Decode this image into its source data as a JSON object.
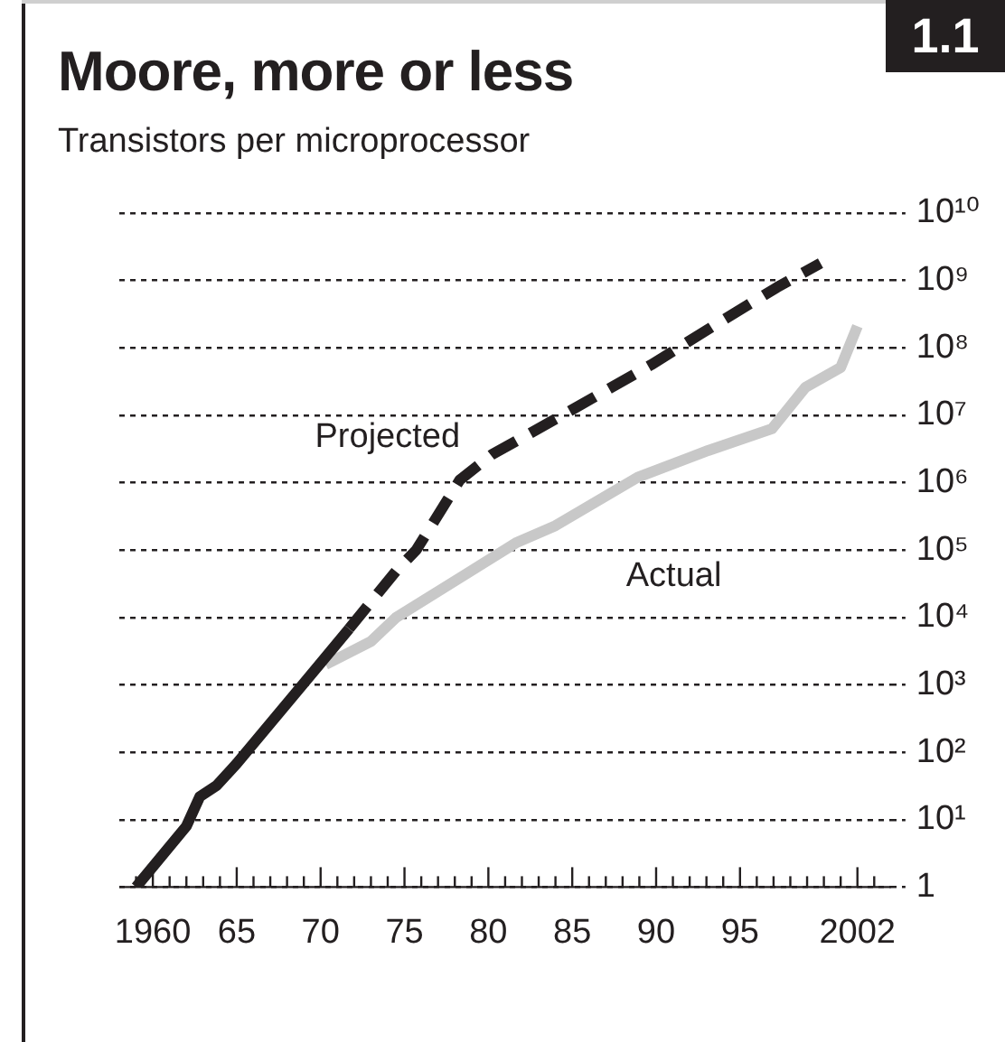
{
  "chart_data": {
    "type": "line",
    "title": "Moore, more or less",
    "subtitle": "Transistors per microprocessor",
    "annotations": [
      "1.1"
    ],
    "log": "y",
    "grid": "y",
    "legend": false,
    "xlim": [
      1958,
      2004
    ],
    "xticks": [
      {
        "value": 1959,
        "label": null
      },
      {
        "value": 1960,
        "label": "1960"
      },
      {
        "value": 1961,
        "label": null
      },
      {
        "value": 1962,
        "label": null
      },
      {
        "value": 1963,
        "label": null
      },
      {
        "value": 1964,
        "label": null
      },
      {
        "value": 1965,
        "label": "65"
      },
      {
        "value": 1966,
        "label": null
      },
      {
        "value": 1967,
        "label": null
      },
      {
        "value": 1968,
        "label": null
      },
      {
        "value": 1969,
        "label": null
      },
      {
        "value": 1970,
        "label": "70"
      },
      {
        "value": 1971,
        "label": null
      },
      {
        "value": 1972,
        "label": null
      },
      {
        "value": 1973,
        "label": null
      },
      {
        "value": 1974,
        "label": null
      },
      {
        "value": 1975,
        "label": "75"
      },
      {
        "value": 1976,
        "label": null
      },
      {
        "value": 1977,
        "label": null
      },
      {
        "value": 1978,
        "label": null
      },
      {
        "value": 1979,
        "label": null
      },
      {
        "value": 1980,
        "label": "80"
      },
      {
        "value": 1981,
        "label": null
      },
      {
        "value": 1982,
        "label": null
      },
      {
        "value": 1983,
        "label": null
      },
      {
        "value": 1984,
        "label": null
      },
      {
        "value": 1985,
        "label": "85"
      },
      {
        "value": 1986,
        "label": null
      },
      {
        "value": 1987,
        "label": null
      },
      {
        "value": 1988,
        "label": null
      },
      {
        "value": 1989,
        "label": null
      },
      {
        "value": 1990,
        "label": "90"
      },
      {
        "value": 1991,
        "label": null
      },
      {
        "value": 1992,
        "label": null
      },
      {
        "value": 1993,
        "label": null
      },
      {
        "value": 1994,
        "label": null
      },
      {
        "value": 1995,
        "label": "95"
      },
      {
        "value": 1996,
        "label": null
      },
      {
        "value": 1997,
        "label": null
      },
      {
        "value": 1998,
        "label": null
      },
      {
        "value": 1999,
        "label": null
      },
      {
        "value": 2000,
        "label": null
      },
      {
        "value": 2001,
        "label": null
      },
      {
        "value": 2002,
        "label": "2002"
      },
      {
        "value": 2003,
        "label": null
      }
    ],
    "ylim": [
      1,
      10000000000
    ],
    "yticks": [
      1,
      {
        "value": 10,
        "label": "10¹"
      },
      {
        "value": 100,
        "label": "10²"
      },
      {
        "value": 1000,
        "label": "10³"
      },
      {
        "value": 10000,
        "label": "10⁴"
      },
      {
        "value": 100000,
        "label": "10⁵"
      },
      {
        "value": 1000000,
        "label": "10⁶"
      },
      {
        "value": 10000000,
        "label": "10⁷"
      },
      {
        "value": 100000000,
        "label": "10⁸"
      },
      {
        "value": 1000000000,
        "label": "10⁹"
      },
      {
        "value": 10000000000,
        "label": "10¹⁰"
      }
    ],
    "series": [
      {
        "color": "#231f20",
        "line_style": "solid",
        "x": [
          1959,
          1962,
          1962.8,
          1963.8,
          1965,
          1970,
          1971.7
        ],
        "values": [
          1,
          8,
          22,
          32,
          68,
          2100,
          6800
        ]
      },
      {
        "name": "Projected",
        "color": "#231f20",
        "line_style": "dashed",
        "x": [
          1971.7,
          1972.5,
          1974.5,
          1975.7,
          1978.3,
          1980.2,
          1984.4,
          1989.7,
          1993.4,
          1997.2,
          1999.8
        ],
        "values": [
          6800,
          12000,
          49000,
          100000,
          1100000,
          2600000,
          10000000,
          56000000,
          210000000,
          790000000,
          1800000000
        ]
      },
      {
        "name": "Actual",
        "color": "#c8c8c8",
        "line_style": "solid",
        "x": [
          1970.3,
          1973,
          1974.5,
          1981.7,
          1984,
          1988.9,
          1993.1,
          1996.9,
          1998.9,
          2001,
          2002
        ],
        "values": [
          2000,
          4400,
          10000,
          130000,
          230000,
          1200000,
          3000000,
          6300000,
          26000000,
          51000000,
          210000000
        ]
      }
    ]
  }
}
